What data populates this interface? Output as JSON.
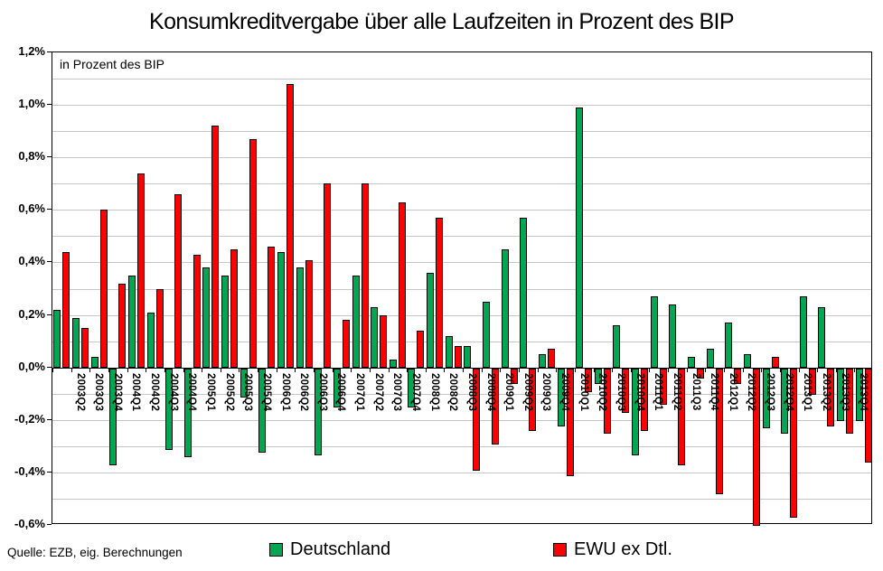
{
  "title": "Konsumkreditvergabe über alle Laufzeiten in Prozent des BIP",
  "plot_note": "in Prozent des BIP",
  "source": "Quelle: EZB, eig. Berechnungen",
  "legend": {
    "deutschland_label": "Deutschland",
    "ewu_label": "EWU ex Dtl."
  },
  "colors": {
    "deutschland": "#00A651",
    "ewu": "#FF0000",
    "gridline": "#c6c6c6",
    "axis": "#000000"
  },
  "y_axis_tick_labels": [
    "1,2%",
    "1,0%",
    "0,8%",
    "0,6%",
    "0,4%",
    "0,2%",
    "0,0%",
    "-0,2%",
    "-0,4%",
    "-0,6%"
  ],
  "chart_data": {
    "type": "bar",
    "title": "Konsumkreditvergabe über alle Laufzeiten in Prozent des BIP",
    "xlabel": "",
    "ylabel": "in Prozent des BIP",
    "ylim": [
      -0.6,
      1.2
    ],
    "y_major_step": 0.2,
    "y_minor_gridline_step": 0.1,
    "grid": "horizontal",
    "legend_position": "bottom",
    "value_unit": "% des BIP",
    "categories": [
      "",
      "2003Q2",
      "2003Q3",
      "2003Q4",
      "2004Q1",
      "2004Q2",
      "2004Q3",
      "2004Q4",
      "2005Q1",
      "2005Q2",
      "2005Q3",
      "2005Q4",
      "2006Q1",
      "2006Q2",
      "2006Q3",
      "2006Q4",
      "2007Q1",
      "2007Q2",
      "2007Q3",
      "2007Q4",
      "2008Q1",
      "2008Q2",
      "2008Q3",
      "2008Q4",
      "2009Q1",
      "2009Q2",
      "2009Q3",
      "2009Q4",
      "2010Q1",
      "2010Q2",
      "2010Q3",
      "2010Q4",
      "2011Q1",
      "2011Q2",
      "2011Q3",
      "2011Q4",
      "2012Q1",
      "2012Q2",
      "2012Q3",
      "2012Q4",
      "2013Q1",
      "2013Q2",
      "2013Q3",
      "2013Q4"
    ],
    "series": [
      {
        "name": "Deutschland",
        "color": "#00A651",
        "values": [
          0.22,
          0.19,
          0.04,
          -0.37,
          0.35,
          0.21,
          -0.31,
          -0.34,
          0.38,
          0.35,
          -0.11,
          -0.32,
          0.44,
          0.38,
          -0.33,
          -0.15,
          0.35,
          0.23,
          0.03,
          -0.15,
          0.36,
          0.12,
          0.08,
          0.25,
          0.45,
          0.57,
          0.05,
          -0.22,
          0.99,
          -0.06,
          0.16,
          -0.33,
          0.27,
          0.24,
          0.04,
          0.07,
          0.17,
          0.05,
          -0.23,
          -0.25,
          0.27,
          0.23,
          -0.2,
          -0.2
        ]
      },
      {
        "name": "EWU ex Dtl.",
        "color": "#FF0000",
        "values": [
          0.44,
          0.15,
          0.6,
          0.32,
          0.74,
          0.3,
          0.66,
          0.43,
          0.92,
          0.45,
          0.87,
          0.46,
          1.08,
          0.41,
          0.7,
          0.18,
          0.7,
          0.2,
          0.63,
          0.14,
          0.57,
          0.08,
          -0.39,
          -0.29,
          -0.06,
          -0.24,
          0.07,
          -0.41,
          -0.09,
          -0.25,
          -0.17,
          -0.24,
          -0.14,
          -0.37,
          -0.04,
          -0.48,
          -0.06,
          -0.6,
          0.04,
          -0.57,
          -0.1,
          -0.22,
          -0.25,
          -0.36
        ]
      }
    ]
  }
}
